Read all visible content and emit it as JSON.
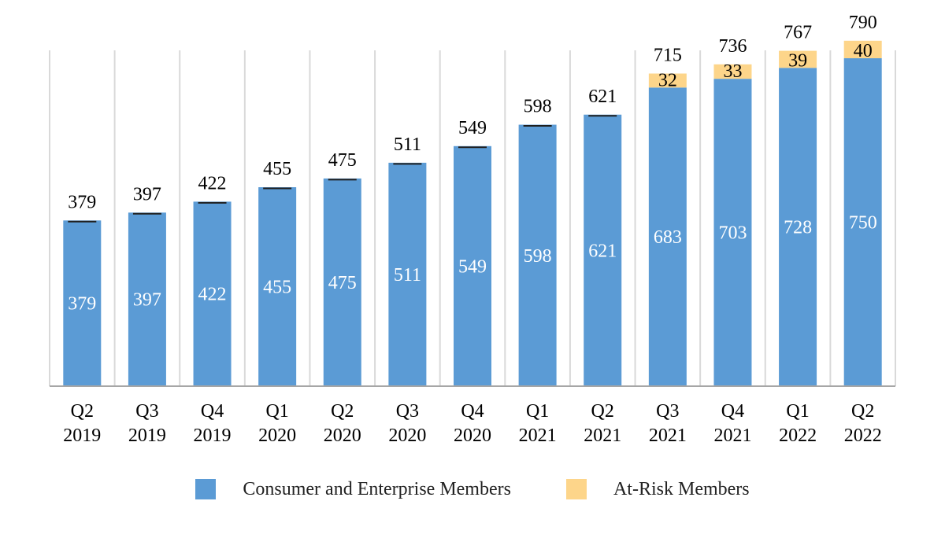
{
  "chart_data": {
    "type": "bar",
    "stacked": true,
    "categories": [
      "Q2 2019",
      "Q3 2019",
      "Q4 2019",
      "Q1 2020",
      "Q2 2020",
      "Q3 2020",
      "Q4 2020",
      "Q1 2021",
      "Q2 2021",
      "Q3 2021",
      "Q4 2021",
      "Q1 2022",
      "Q2 2022"
    ],
    "tick_lines": [
      [
        "Q2",
        "2019"
      ],
      [
        "Q3",
        "2019"
      ],
      [
        "Q4",
        "2019"
      ],
      [
        "Q1",
        "2020"
      ],
      [
        "Q2",
        "2020"
      ],
      [
        "Q3",
        "2020"
      ],
      [
        "Q4",
        "2020"
      ],
      [
        "Q1",
        "2021"
      ],
      [
        "Q2",
        "2021"
      ],
      [
        "Q3",
        "2021"
      ],
      [
        "Q4",
        "2021"
      ],
      [
        "Q1",
        "2022"
      ],
      [
        "Q2",
        "2022"
      ]
    ],
    "series": [
      {
        "name": "Consumer and Enterprise Members",
        "color": "#5B9BD5",
        "values": [
          379,
          397,
          422,
          455,
          475,
          511,
          549,
          598,
          621,
          683,
          703,
          728,
          750
        ]
      },
      {
        "name": "At-Risk Members",
        "color": "#FDD58A",
        "values": [
          null,
          null,
          null,
          null,
          null,
          null,
          null,
          null,
          null,
          32,
          33,
          39,
          40
        ]
      }
    ],
    "totals": [
      379,
      397,
      422,
      455,
      475,
      511,
      549,
      598,
      621,
      715,
      736,
      767,
      790
    ],
    "ylim": [
      0,
      840
    ],
    "grid": "vertical",
    "legend": "bottom",
    "title": "",
    "xlabel": "",
    "ylabel": ""
  }
}
